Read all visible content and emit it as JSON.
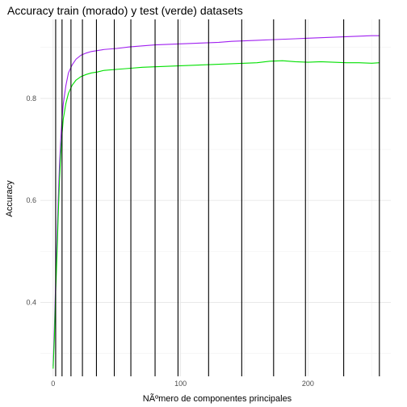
{
  "chart_data": {
    "type": "line",
    "title": "Accuracy train (morado) y test (verde) datasets",
    "xlabel": "NÃºmero de componentes principales",
    "ylabel": "Accuracy",
    "xlim": [
      -10,
      265
    ],
    "ylim": [
      0.255,
      0.955
    ],
    "x_ticks": [
      0,
      100,
      200
    ],
    "y_ticks": [
      0.4,
      0.6,
      0.8
    ],
    "x_tick_labels": [
      "0",
      "100",
      "200"
    ],
    "y_tick_labels": [
      "0.4",
      "0.6",
      "0.8"
    ],
    "grid": true,
    "legend": "none",
    "vertical_lines_x": [
      2,
      7,
      14,
      23,
      34,
      48,
      61,
      80,
      98,
      122,
      148,
      173,
      198,
      228,
      256
    ],
    "series": [
      {
        "color": "#a020f0",
        "x": [
          0,
          1,
          2,
          3,
          4,
          5,
          6,
          7,
          8,
          10,
          12,
          15,
          18,
          22,
          26,
          30,
          40,
          50,
          60,
          70,
          80,
          90,
          100,
          110,
          120,
          130,
          140,
          150,
          160,
          170,
          180,
          190,
          200,
          210,
          220,
          230,
          240,
          250,
          256
        ],
        "y": [
          0.275,
          0.35,
          0.44,
          0.52,
          0.6,
          0.67,
          0.72,
          0.76,
          0.79,
          0.825,
          0.85,
          0.866,
          0.877,
          0.885,
          0.889,
          0.892,
          0.896,
          0.898,
          0.901,
          0.903,
          0.905,
          0.906,
          0.907,
          0.908,
          0.909,
          0.91,
          0.912,
          0.913,
          0.914,
          0.915,
          0.916,
          0.917,
          0.918,
          0.919,
          0.92,
          0.921,
          0.922,
          0.923,
          0.923
        ]
      },
      {
        "color": "#00e000",
        "x": [
          0,
          1,
          2,
          3,
          4,
          5,
          6,
          7,
          8,
          10,
          12,
          15,
          18,
          22,
          26,
          30,
          35,
          40,
          50,
          60,
          70,
          80,
          90,
          100,
          110,
          120,
          130,
          140,
          150,
          160,
          170,
          180,
          190,
          200,
          210,
          220,
          230,
          240,
          250,
          256
        ],
        "y": [
          0.27,
          0.33,
          0.42,
          0.49,
          0.57,
          0.64,
          0.69,
          0.73,
          0.76,
          0.79,
          0.81,
          0.826,
          0.836,
          0.843,
          0.847,
          0.85,
          0.852,
          0.855,
          0.857,
          0.859,
          0.861,
          0.862,
          0.863,
          0.864,
          0.865,
          0.866,
          0.867,
          0.868,
          0.869,
          0.87,
          0.873,
          0.874,
          0.872,
          0.871,
          0.872,
          0.871,
          0.87,
          0.87,
          0.869,
          0.87
        ]
      }
    ]
  }
}
